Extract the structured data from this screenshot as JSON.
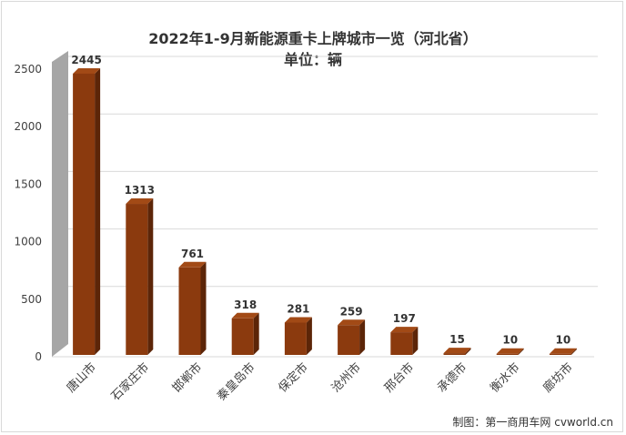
{
  "chart_data": {
    "type": "bar",
    "title": "2022年1-9月新能源重卡上牌城市一览（河北省）",
    "subtitle": "单位：辆",
    "categories": [
      "唐山市",
      "石家庄市",
      "邯郸市",
      "秦皇岛市",
      "保定市",
      "沧州市",
      "邢台市",
      "承德市",
      "衡水市",
      "廊坊市"
    ],
    "values": [
      2445,
      1313,
      761,
      318,
      281,
      259,
      197,
      15,
      10,
      10
    ],
    "yticks": [
      "0",
      "500",
      "1000",
      "1500",
      "2000",
      "2500"
    ],
    "ylim": [
      0,
      2500
    ],
    "grid": true,
    "colors": {
      "bar_front": "#8b3a0e",
      "bar_side": "#5c2508",
      "bar_top": "#a24a16",
      "wall": "#a6a6a6",
      "grid": "#d9d9d9"
    }
  },
  "credit": "制图：第一商用车网 cvworld.cn"
}
